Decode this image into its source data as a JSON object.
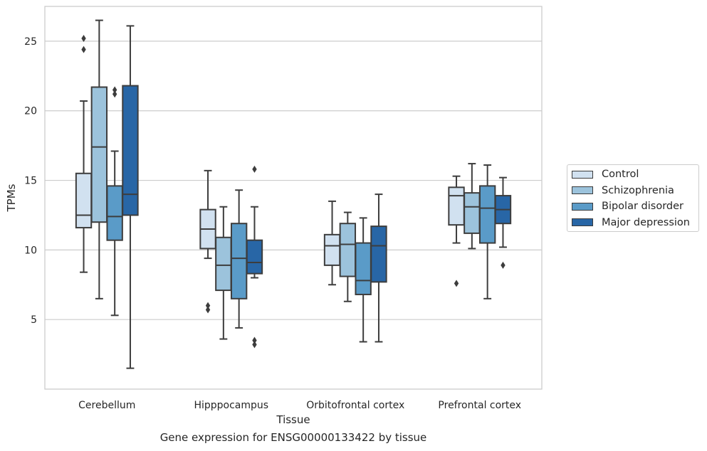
{
  "chart_data": {
    "type": "box",
    "title": "",
    "caption": "Gene expression for ENSG00000133422 by tissue",
    "xlabel": "Tissue",
    "ylabel": "TPMs",
    "ylim": [
      0,
      27.5
    ],
    "yticks": [
      5,
      10,
      15,
      20,
      25
    ],
    "grid": "horizontal",
    "legend_position": "right",
    "categories": [
      "Cerebellum",
      "Hipppocampus",
      "Orbitofrontal cortex",
      "Prefrontal cortex"
    ],
    "series": [
      {
        "name": "Control",
        "color": "#d1e1f0",
        "boxes": [
          {
            "whislo": 8.4,
            "q1": 11.6,
            "med": 12.5,
            "q3": 15.5,
            "whishi": 20.7,
            "fliers": [
              24.4,
              25.2
            ]
          },
          {
            "whislo": 9.4,
            "q1": 10.1,
            "med": 11.5,
            "q3": 12.9,
            "whishi": 15.7,
            "fliers": [
              5.7,
              6.0
            ]
          },
          {
            "whislo": 7.5,
            "q1": 8.9,
            "med": 10.3,
            "q3": 11.1,
            "whishi": 13.5,
            "fliers": []
          },
          {
            "whislo": 10.5,
            "q1": 11.8,
            "med": 13.9,
            "q3": 14.5,
            "whishi": 15.3,
            "fliers": [
              7.6
            ]
          }
        ]
      },
      {
        "name": "Schizophrenia",
        "color": "#9cc3dc",
        "boxes": [
          {
            "whislo": 6.5,
            "q1": 12.0,
            "med": 17.4,
            "q3": 21.7,
            "whishi": 26.5,
            "fliers": []
          },
          {
            "whislo": 3.6,
            "q1": 7.1,
            "med": 8.9,
            "q3": 10.9,
            "whishi": 13.1,
            "fliers": []
          },
          {
            "whislo": 6.3,
            "q1": 8.1,
            "med": 10.4,
            "q3": 11.9,
            "whishi": 12.7,
            "fliers": []
          },
          {
            "whislo": 10.1,
            "q1": 11.2,
            "med": 13.1,
            "q3": 14.1,
            "whishi": 16.2,
            "fliers": []
          }
        ]
      },
      {
        "name": "Bipolar disorder",
        "color": "#5a9bc8",
        "boxes": [
          {
            "whislo": 5.3,
            "q1": 10.7,
            "med": 12.4,
            "q3": 14.6,
            "whishi": 17.1,
            "fliers": [
              21.2,
              21.5
            ]
          },
          {
            "whislo": 4.4,
            "q1": 6.5,
            "med": 9.4,
            "q3": 11.9,
            "whishi": 14.3,
            "fliers": []
          },
          {
            "whislo": 3.4,
            "q1": 6.8,
            "med": 7.8,
            "q3": 10.5,
            "whishi": 12.3,
            "fliers": []
          },
          {
            "whislo": 6.5,
            "q1": 10.5,
            "med": 13.0,
            "q3": 14.6,
            "whishi": 16.1,
            "fliers": []
          }
        ]
      },
      {
        "name": "Major depression",
        "color": "#2866a6",
        "boxes": [
          {
            "whislo": 1.5,
            "q1": 12.5,
            "med": 14.0,
            "q3": 21.8,
            "whishi": 26.1,
            "fliers": []
          },
          {
            "whislo": 8.0,
            "q1": 8.3,
            "med": 9.1,
            "q3": 10.7,
            "whishi": 13.1,
            "fliers": [
              15.8,
              3.2,
              3.5
            ]
          },
          {
            "whislo": 3.4,
            "q1": 7.7,
            "med": 10.3,
            "q3": 11.7,
            "whishi": 14.0,
            "fliers": []
          },
          {
            "whislo": 10.2,
            "q1": 11.9,
            "med": 12.9,
            "q3": 13.9,
            "whishi": 15.2,
            "fliers": [
              8.9
            ]
          }
        ]
      }
    ]
  }
}
